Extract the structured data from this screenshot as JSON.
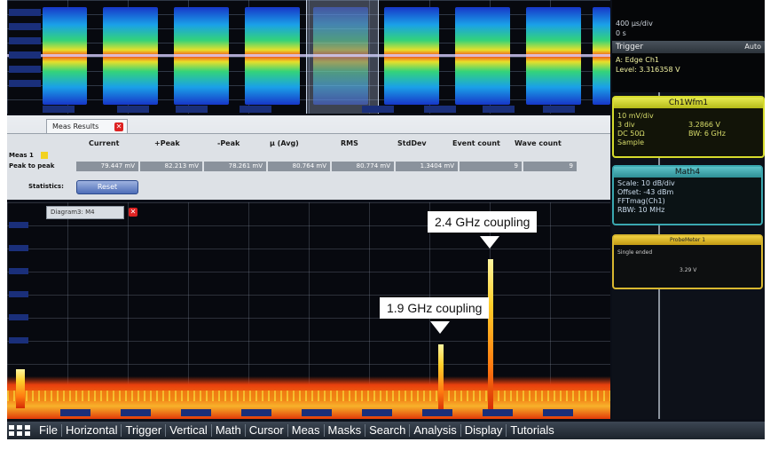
{
  "callouts": {
    "high": "2.4 GHz coupling",
    "low": "1.9 GHz coupling"
  },
  "menu": [
    "File",
    "Horizontal",
    "Trigger",
    "Vertical",
    "Math",
    "Cursor",
    "Meas",
    "Masks",
    "Search",
    "Analysis",
    "Display",
    "Tutorials"
  ],
  "meas_results": {
    "tab": "Meas Results",
    "columns": [
      "Current",
      "+Peak",
      "-Peak",
      "μ (Avg)",
      "RMS",
      "StdDev",
      "Event count",
      "Wave count"
    ],
    "meas_label": "Meas 1",
    "row_label": "Peak to peak",
    "values": [
      "79.447 mV",
      "82.213 mV",
      "78.261 mV",
      "80.764 mV",
      "80.774 mV",
      "1.3404 mV",
      "9",
      "9"
    ],
    "statistics_label": "Statistics:",
    "reset_label": "Reset"
  },
  "diagram_tab": "Diagram3: M4",
  "trigger": {
    "top_lines": [
      "400 μs/div",
      "0 s"
    ],
    "header": "Trigger",
    "mode": "Auto",
    "source": "A: Edge  Ch1",
    "level": "Level: 3.316358 V"
  },
  "ch1": {
    "header": "Ch1Wfm1",
    "scale": "10 mV/div",
    "offset": "3 div",
    "offset_value": "3.2866 V",
    "coupling": "DC 50Ω",
    "bandwidth": "BW: 6 GHz",
    "mode": "Sample"
  },
  "math": {
    "header": "Math4",
    "scale": "Scale: 10 dB/div",
    "offset": "Offset: -43 dBm",
    "function": "FFTmag(Ch1)",
    "rbw": "RBW: 10 MHz"
  },
  "probe": {
    "header": "ProbeMeter 1",
    "mode": "Single ended",
    "value": "3.29 V"
  },
  "colors": {
    "accent_trigger": "#d7dc2c",
    "math": "#3aa8b0",
    "probe": "#d9b830"
  }
}
